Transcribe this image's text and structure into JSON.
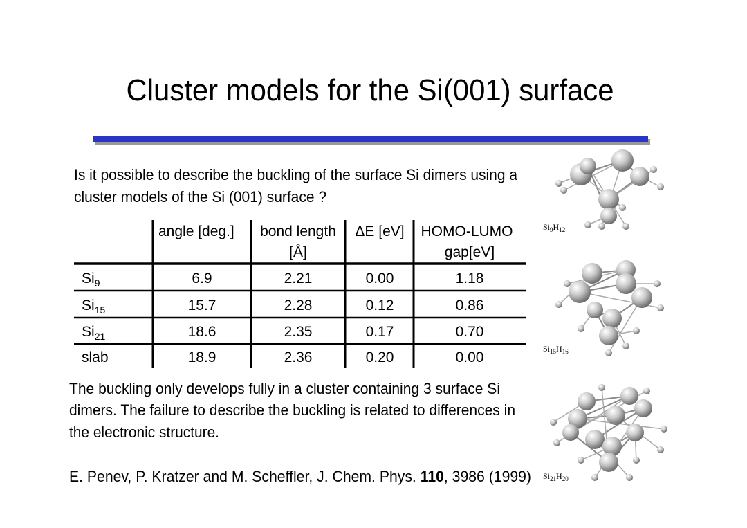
{
  "title": "Cluster models for the Si(001) surface",
  "question": [
    "Is it possible to describe the buckling of the surface Si dimers using a",
    "cluster models of the Si (001) surface ?"
  ],
  "table": {
    "headers": [
      [
        "angle [deg.]"
      ],
      [
        "bond length",
        "[Å]"
      ],
      [
        "ΔE [eV]"
      ],
      [
        "HOMO-LUMO",
        "gap[eV]"
      ]
    ],
    "rows": [
      {
        "label": {
          "base": "Si",
          "sub": "9"
        },
        "cells": [
          "6.9",
          "2.21",
          "0.00",
          "1.18"
        ]
      },
      {
        "label": {
          "base": "Si",
          "sub": "15"
        },
        "cells": [
          "15.7",
          "2.28",
          "0.12",
          "0.86"
        ]
      },
      {
        "label": {
          "base": "Si",
          "sub": "21"
        },
        "cells": [
          "18.6",
          "2.35",
          "0.17",
          "0.70"
        ]
      },
      {
        "label": {
          "base": "slab"
        },
        "cells": [
          "18.9",
          "2.36",
          "0.20",
          "0.00"
        ]
      }
    ]
  },
  "paragraph": [
    "The buckling only develops fully in a cluster containing 3 surface Si",
    "dimers. The failure to describe the buckling is related to differences in",
    "the electronic structure."
  ],
  "citation": {
    "before": "E. Penev, P. Kratzer and M. Scheffler, J. Chem. Phys. ",
    "bold": "110",
    "after": ", 3986 (1999)"
  },
  "molecules": [
    {
      "si": "Si",
      "n_si": "9",
      "h": "H",
      "n_h": "12"
    },
    {
      "si": "Si",
      "n_si": "15",
      "h": "H",
      "n_h": "16"
    },
    {
      "si": "Si",
      "n_si": "21",
      "h": "H",
      "n_h": "20"
    }
  ]
}
